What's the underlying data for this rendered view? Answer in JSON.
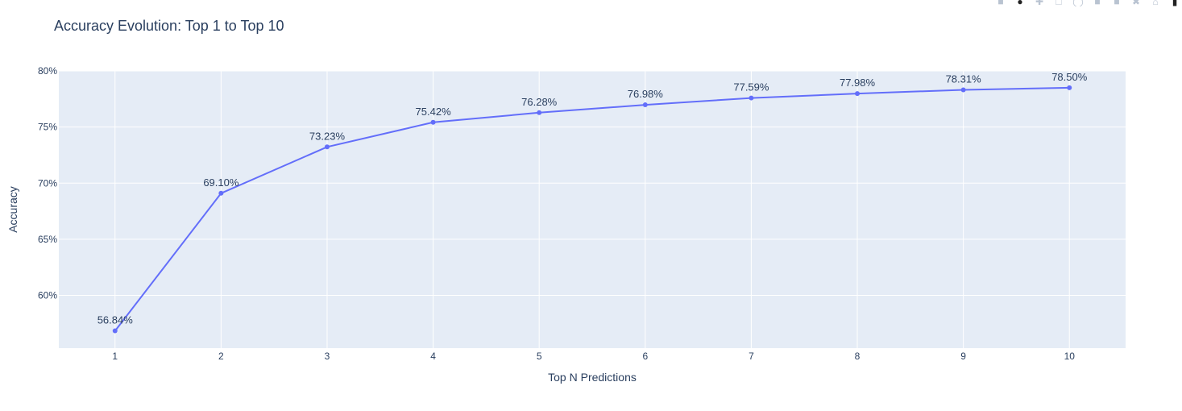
{
  "chart_data": {
    "type": "line",
    "title": "Accuracy Evolution: Top 1 to Top 10",
    "xlabel": "Top N Predictions",
    "ylabel": "Accuracy",
    "x": [
      1,
      2,
      3,
      4,
      5,
      6,
      7,
      8,
      9,
      10
    ],
    "series": [
      {
        "values": [
          56.84,
          69.1,
          73.23,
          75.42,
          76.28,
          76.98,
          77.59,
          77.98,
          78.31,
          78.5
        ],
        "labels": [
          "56.84%",
          "69.10%",
          "73.23%",
          "75.42%",
          "76.28%",
          "76.98%",
          "77.59%",
          "77.98%",
          "78.31%",
          "78.50%"
        ],
        "color": "#636efa"
      }
    ],
    "xlim": [
      0.47,
      10.53
    ],
    "ylim": [
      55.3,
      80
    ],
    "y_ticks": [
      60,
      65,
      70,
      75,
      80
    ],
    "y_tick_labels": [
      "60%",
      "65%",
      "70%",
      "75%",
      "80%"
    ],
    "x_tick_labels": [
      "1",
      "2",
      "3",
      "4",
      "5",
      "6",
      "7",
      "8",
      "9",
      "10"
    ],
    "grid": true,
    "plot_bg": "#e5ecf6",
    "grid_color": "#ffffff"
  },
  "modebar": {
    "icons": [
      "camera-icon",
      "zoom-icon",
      "pan-icon",
      "select-box-icon",
      "lasso-icon",
      "zoom-in-icon",
      "zoom-out-icon",
      "autoscale-icon",
      "home-icon",
      "plotly-logo-icon"
    ]
  }
}
